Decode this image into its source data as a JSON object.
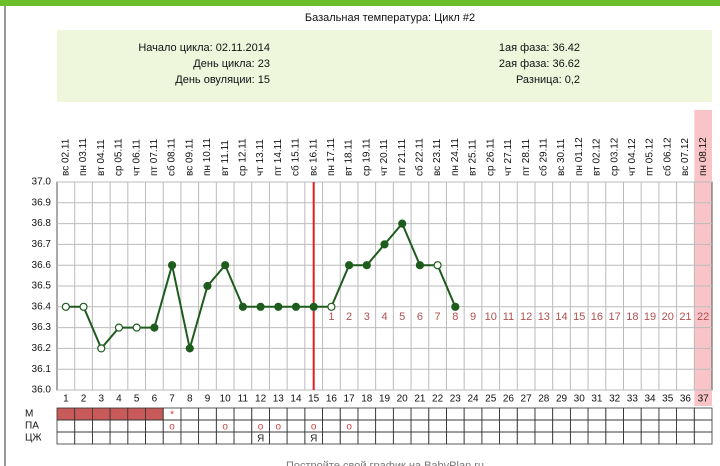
{
  "chart_data": {
    "type": "line",
    "title": "Базальная температура: Цикл #2",
    "info_left": [
      "Начало цикла: 02.11.2014",
      "День цикла: 23",
      "День овуляции: 15"
    ],
    "info_right": [
      "1ая фаза: 36.42",
      "2ая фаза: 36.62",
      "Разница: 0,2"
    ],
    "categories": [
      1,
      2,
      3,
      4,
      5,
      6,
      7,
      8,
      9,
      10,
      11,
      12,
      13,
      14,
      15,
      16,
      17,
      18,
      19,
      20,
      21,
      22,
      23,
      24,
      25,
      26,
      27,
      28,
      29,
      30,
      31,
      32,
      33,
      34,
      35,
      36,
      37
    ],
    "dates": [
      "вс 02.11",
      "пн 03.11",
      "вт 04.11",
      "ср 05.11",
      "чт 06.11",
      "пт 07.11",
      "сб 08.11",
      "вс 09.11",
      "пн 10.11",
      "вт 11.11",
      "ср 12.11",
      "чт 13.11",
      "пт 14.11",
      "сб 15.11",
      "вс 16.11",
      "пн 17.11",
      "вт 18.11",
      "ср 19.11",
      "чт 20.11",
      "пт 21.11",
      "сб 22.11",
      "вс 23.11",
      "пн 24.11",
      "вт 25.11",
      "ср 26.11",
      "чт 27.11",
      "пт 28.11",
      "сб 29.11",
      "вс 30.11",
      "пн 01.12",
      "вт 02.12",
      "ср 03.12",
      "чт 04.12",
      "пт 05.12",
      "сб 06.12",
      "вс 07.12",
      "пн 08.12"
    ],
    "values": [
      36.4,
      36.4,
      36.2,
      36.3,
      36.3,
      36.3,
      36.6,
      36.2,
      36.5,
      36.6,
      36.4,
      36.4,
      36.4,
      36.4,
      36.4,
      36.4,
      36.6,
      36.6,
      36.7,
      36.8,
      36.6,
      36.6,
      36.4,
      null,
      null,
      null,
      null,
      null,
      null,
      null,
      null,
      null,
      null,
      null,
      null,
      null,
      null
    ],
    "point_styles": [
      "open",
      "open",
      "open",
      "open",
      "open",
      "filled",
      "filled",
      "filled",
      "filled",
      "filled",
      "filled",
      "filled",
      "filled",
      "filled",
      "filled",
      "open",
      "filled",
      "filled",
      "filled",
      "filled",
      "filled",
      "open",
      "filled",
      null,
      null,
      null,
      null,
      null,
      null,
      null,
      null,
      null,
      null,
      null,
      null,
      null,
      null
    ],
    "post_ovulation_days": [
      null,
      null,
      null,
      null,
      null,
      null,
      null,
      null,
      null,
      null,
      null,
      null,
      null,
      null,
      null,
      1,
      2,
      3,
      4,
      5,
      6,
      7,
      8,
      9,
      10,
      11,
      12,
      13,
      14,
      15,
      16,
      17,
      18,
      19,
      20,
      21,
      22
    ],
    "ovulation_line": 15,
    "highlight_day": 37,
    "color": "#1e5c1e",
    "ylim": [
      36.0,
      37.0
    ],
    "yticks": [
      {
        "value": 36.0,
        "label": "36.0"
      },
      36.1,
      36.2,
      36.3,
      36.4,
      36.5,
      36.6,
      36.7,
      36.8,
      36.9,
      {
        "value": 37.0,
        "label": "37.0"
      }
    ],
    "grid": true,
    "rows": [
      {
        "label": "М",
        "filled": [
          true,
          true,
          true,
          true,
          true,
          true,
          false,
          false,
          false,
          false,
          false,
          false,
          false,
          false,
          false,
          false,
          false,
          false,
          false,
          false,
          false,
          false,
          false,
          false,
          false,
          false,
          false,
          false,
          false,
          false,
          false,
          false,
          false,
          false,
          false,
          false,
          false
        ],
        "marks": [
          null,
          null,
          null,
          null,
          null,
          null,
          "*",
          null,
          null,
          null,
          null,
          null,
          null,
          null,
          null,
          null,
          null,
          null,
          null,
          null,
          null,
          null,
          null,
          null,
          null,
          null,
          null,
          null,
          null,
          null,
          null,
          null,
          null,
          null,
          null,
          null,
          null
        ]
      },
      {
        "label": "ПА",
        "marks": [
          null,
          null,
          null,
          null,
          null,
          null,
          "о",
          null,
          null,
          "о",
          null,
          "о",
          "о",
          null,
          "о",
          null,
          "о",
          null,
          null,
          null,
          null,
          null,
          null,
          null,
          null,
          null,
          null,
          null,
          null,
          null,
          null,
          null,
          null,
          null,
          null,
          null,
          null
        ]
      },
      {
        "label": "ЦЖ",
        "marks": [
          null,
          null,
          null,
          null,
          null,
          null,
          null,
          null,
          null,
          null,
          null,
          "Я",
          null,
          null,
          "Я",
          null,
          null,
          null,
          null,
          null,
          null,
          null,
          null,
          null,
          null,
          null,
          null,
          null,
          null,
          null,
          null,
          null,
          null,
          null,
          null,
          null,
          null
        ]
      }
    ],
    "footer": "Постройте свой график на BabyPlan.ru"
  }
}
